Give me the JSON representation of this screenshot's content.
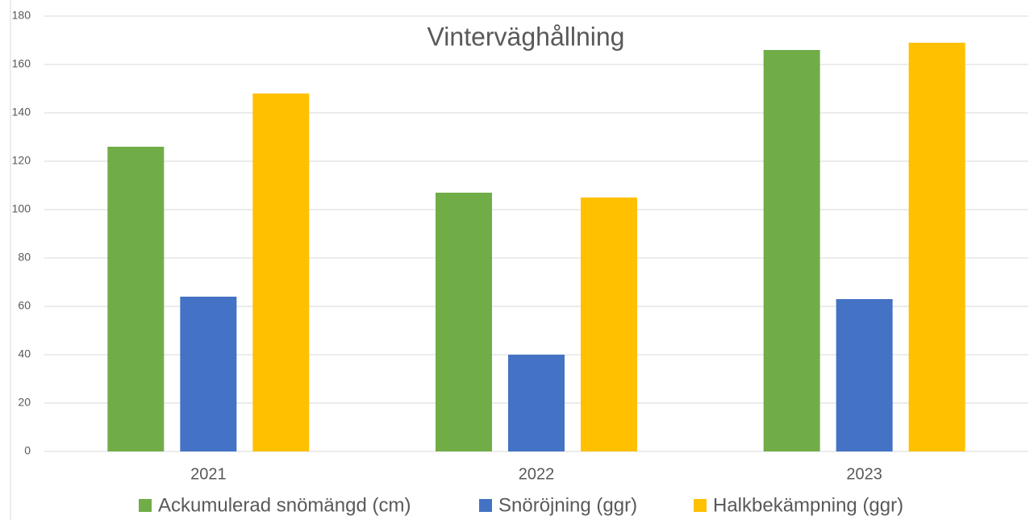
{
  "chart_data": {
    "type": "bar",
    "title": "Vinterväghållning",
    "categories": [
      "2021",
      "2022",
      "2023"
    ],
    "series": [
      {
        "name": "Ackumulerad snömängd (cm)",
        "color": "#70ad47",
        "values": [
          126,
          107,
          166
        ]
      },
      {
        "name": "Snöröjning (ggr)",
        "color": "#4472c4",
        "values": [
          64,
          40,
          63
        ]
      },
      {
        "name": "Halkbekämpning (ggr)",
        "color": "#ffc000",
        "values": [
          148,
          105,
          169
        ]
      }
    ],
    "ylim": [
      0,
      180
    ],
    "yticks": [
      0,
      20,
      40,
      60,
      80,
      100,
      120,
      140,
      160,
      180
    ],
    "grid": true,
    "legend": "bottom"
  }
}
